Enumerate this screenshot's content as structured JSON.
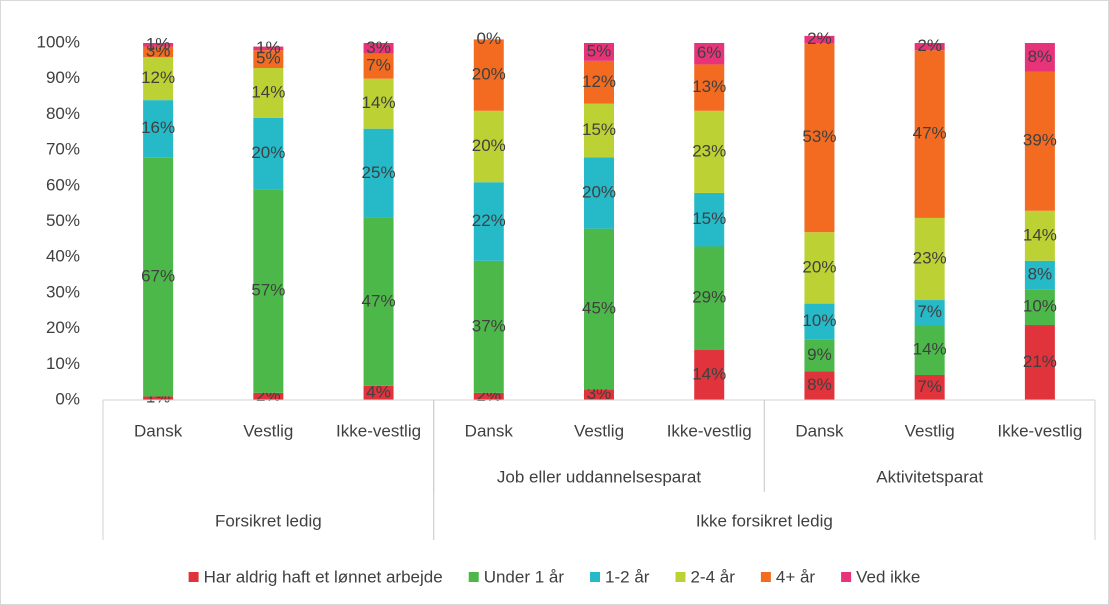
{
  "chart_data": {
    "type": "stacked_bar",
    "category_groups": [
      {
        "name": "Forsikret ledig",
        "subgroups": [
          {
            "categories": [
              "Dansk",
              "Vestlig",
              "Ikke-vestlig"
            ]
          }
        ]
      },
      {
        "name": "Ikke forsikret ledig",
        "subgroups": [
          {
            "name": "Job eller uddannelsesparat",
            "categories": [
              "Dansk",
              "Vestlig",
              "Ikke-vestlig"
            ]
          },
          {
            "name": "Aktivitetsparat",
            "categories": [
              "Dansk",
              "Vestlig",
              "Ikke-vestlig"
            ]
          }
        ]
      }
    ],
    "series": [
      {
        "name": "Har aldrig haft et lønnet arbejde",
        "color": "#e0333c",
        "values": [
          1,
          2,
          4,
          2,
          3,
          14,
          8,
          7,
          21
        ],
        "value_labels": [
          "1%",
          "2%",
          "4%",
          "2%",
          "3%",
          "14%",
          "8%",
          "7%",
          "21%"
        ]
      },
      {
        "name": "Under 1 år",
        "color": "#4db84a",
        "values": [
          67,
          57,
          47,
          37,
          45,
          29,
          9,
          14,
          10
        ],
        "value_labels": [
          "67%",
          "57%",
          "47%",
          "37%",
          "45%",
          "29%",
          "9%",
          "14%",
          "10%"
        ]
      },
      {
        "name": "1-2 år",
        "color": "#26b9c8",
        "values": [
          16,
          20,
          25,
          22,
          20,
          15,
          10,
          7,
          8
        ],
        "value_labels": [
          "16%",
          "20%",
          "25%",
          "22%",
          "20%",
          "15%",
          "10%",
          "7%",
          "8%"
        ]
      },
      {
        "name": "2-4 år",
        "color": "#bcd234",
        "values": [
          12,
          14,
          14,
          20,
          15,
          23,
          20,
          23,
          14
        ],
        "value_labels": [
          "12%",
          "14%",
          "14%",
          "20%",
          "15%",
          "23%",
          "20%",
          "23%",
          "14%"
        ]
      },
      {
        "name": "4+ år",
        "color": "#f26b21",
        "values": [
          3,
          5,
          7,
          20,
          12,
          13,
          53,
          47,
          39
        ],
        "value_labels": [
          "3%",
          "5%",
          "7%",
          "20%",
          "12%",
          "13%",
          "53%",
          "47%",
          "39%"
        ]
      },
      {
        "name": "Ved ikke",
        "color": "#e6337a",
        "values": [
          1,
          1,
          3,
          0,
          5,
          6,
          2,
          2,
          8
        ],
        "value_labels": [
          "1%",
          "1%",
          "3%",
          "0%",
          "5%",
          "6%",
          "2%",
          "2%",
          "8%"
        ]
      }
    ],
    "ylim": [
      0,
      100
    ],
    "yticks": [
      {
        "value": 0,
        "label": "0%"
      },
      {
        "value": 10,
        "label": "10%"
      },
      {
        "value": 20,
        "label": "20%"
      },
      {
        "value": 30,
        "label": "30%"
      },
      {
        "value": 40,
        "label": "40%"
      },
      {
        "value": 50,
        "label": "50%"
      },
      {
        "value": 60,
        "label": "60%"
      },
      {
        "value": 70,
        "label": "70%"
      },
      {
        "value": 80,
        "label": "80%"
      },
      {
        "value": 90,
        "label": "90%"
      },
      {
        "value": 100,
        "label": "100%"
      }
    ],
    "grid": false,
    "legend": "bottom"
  }
}
